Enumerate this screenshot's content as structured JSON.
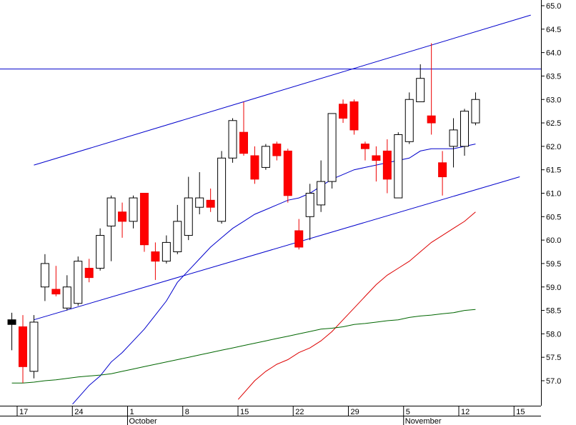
{
  "chart_data": {
    "type": "candlestick",
    "y_axis": {
      "position": "right",
      "range": [
        56.55,
        65.1
      ],
      "ticks": [
        "57.0",
        "57.5",
        "58.0",
        "58.5",
        "59.0",
        "59.5",
        "60.0",
        "60.5",
        "61.0",
        "61.5",
        "62.0",
        "62.5",
        "63.0",
        "63.5",
        "64.0",
        "64.5",
        "65.0"
      ]
    },
    "x_axis": {
      "day_labels": [
        {
          "label": "17",
          "index": 0
        },
        {
          "label": "24",
          "index": 5
        },
        {
          "label": "1",
          "index": 10
        },
        {
          "label": "8",
          "index": 15
        },
        {
          "label": "15",
          "index": 20
        },
        {
          "label": "22",
          "index": 25
        },
        {
          "label": "29",
          "index": 30
        },
        {
          "label": "5",
          "index": 35
        },
        {
          "label": "12",
          "index": 40
        },
        {
          "label": "15",
          "index": 45
        }
      ],
      "month_labels": [
        {
          "label": "October",
          "index": 10
        },
        {
          "label": "November",
          "index": 35
        }
      ]
    },
    "candles": [
      {
        "i": -1,
        "o": 58.3,
        "h": 58.45,
        "l": 57.65,
        "c": 58.2,
        "color": "black"
      },
      {
        "i": 0,
        "o": 58.15,
        "h": 58.4,
        "l": 56.95,
        "c": 57.3,
        "color": "red"
      },
      {
        "i": 1,
        "o": 57.2,
        "h": 58.4,
        "l": 57.05,
        "c": 58.25,
        "color": "white"
      },
      {
        "i": 2,
        "o": 59.0,
        "h": 59.7,
        "l": 58.7,
        "c": 59.5,
        "color": "white"
      },
      {
        "i": 3,
        "o": 58.95,
        "h": 59.45,
        "l": 58.8,
        "c": 58.85,
        "color": "red"
      },
      {
        "i": 4,
        "o": 58.55,
        "h": 59.25,
        "l": 58.5,
        "c": 59.0,
        "color": "white"
      },
      {
        "i": 5,
        "o": 58.65,
        "h": 59.65,
        "l": 58.6,
        "c": 59.55,
        "color": "white"
      },
      {
        "i": 6,
        "o": 59.4,
        "h": 59.6,
        "l": 59.1,
        "c": 59.2,
        "color": "red"
      },
      {
        "i": 7,
        "o": 59.4,
        "h": 60.25,
        "l": 59.35,
        "c": 60.1,
        "color": "white"
      },
      {
        "i": 8,
        "o": 60.3,
        "h": 60.95,
        "l": 59.55,
        "c": 60.9,
        "color": "white"
      },
      {
        "i": 9,
        "o": 60.6,
        "h": 60.8,
        "l": 60.05,
        "c": 60.4,
        "color": "red"
      },
      {
        "i": 10,
        "o": 60.4,
        "h": 60.95,
        "l": 60.25,
        "c": 60.9,
        "color": "white"
      },
      {
        "i": 11,
        "o": 61.0,
        "h": 61.0,
        "l": 59.75,
        "c": 59.9,
        "color": "red"
      },
      {
        "i": 12,
        "o": 59.75,
        "h": 59.95,
        "l": 59.15,
        "c": 59.55,
        "color": "red"
      },
      {
        "i": 13,
        "o": 59.55,
        "h": 60.1,
        "l": 59.5,
        "c": 59.95,
        "color": "white"
      },
      {
        "i": 14,
        "o": 59.75,
        "h": 60.75,
        "l": 59.7,
        "c": 60.4,
        "color": "white"
      },
      {
        "i": 15,
        "o": 60.1,
        "h": 61.35,
        "l": 60.0,
        "c": 60.9,
        "color": "white"
      },
      {
        "i": 16,
        "o": 60.7,
        "h": 61.45,
        "l": 60.55,
        "c": 60.9,
        "color": "white"
      },
      {
        "i": 17,
        "o": 60.85,
        "h": 61.1,
        "l": 60.6,
        "c": 60.7,
        "color": "red"
      },
      {
        "i": 18,
        "o": 60.4,
        "h": 61.9,
        "l": 60.35,
        "c": 61.75,
        "color": "white"
      },
      {
        "i": 19,
        "o": 61.75,
        "h": 62.6,
        "l": 61.65,
        "c": 62.55,
        "color": "white"
      },
      {
        "i": 20,
        "o": 62.3,
        "h": 62.95,
        "l": 61.8,
        "c": 61.85,
        "color": "red"
      },
      {
        "i": 21,
        "o": 61.8,
        "h": 62.0,
        "l": 61.2,
        "c": 61.3,
        "color": "red"
      },
      {
        "i": 22,
        "o": 61.55,
        "h": 62.05,
        "l": 61.5,
        "c": 62.0,
        "color": "white"
      },
      {
        "i": 23,
        "o": 62.05,
        "h": 62.1,
        "l": 61.7,
        "c": 61.8,
        "color": "red"
      },
      {
        "i": 24,
        "o": 61.9,
        "h": 61.95,
        "l": 60.8,
        "c": 60.95,
        "color": "red"
      },
      {
        "i": 25,
        "o": 60.2,
        "h": 60.45,
        "l": 59.8,
        "c": 59.85,
        "color": "red"
      },
      {
        "i": 26,
        "o": 60.5,
        "h": 61.2,
        "l": 60.0,
        "c": 61.0,
        "color": "white"
      },
      {
        "i": 27,
        "o": 60.75,
        "h": 61.7,
        "l": 60.6,
        "c": 61.25,
        "color": "white"
      },
      {
        "i": 28,
        "o": 61.25,
        "h": 62.7,
        "l": 61.1,
        "c": 62.7,
        "color": "white"
      },
      {
        "i": 29,
        "o": 62.9,
        "h": 63.0,
        "l": 62.5,
        "c": 62.6,
        "color": "red"
      },
      {
        "i": 30,
        "o": 62.95,
        "h": 63.0,
        "l": 62.25,
        "c": 62.35,
        "color": "red"
      },
      {
        "i": 31,
        "o": 62.05,
        "h": 62.1,
        "l": 61.7,
        "c": 61.95,
        "color": "red"
      },
      {
        "i": 32,
        "o": 61.8,
        "h": 62.0,
        "l": 61.25,
        "c": 61.7,
        "color": "red"
      },
      {
        "i": 33,
        "o": 61.9,
        "h": 62.15,
        "l": 61.0,
        "c": 61.3,
        "color": "red"
      },
      {
        "i": 34,
        "o": 60.9,
        "h": 62.3,
        "l": 60.9,
        "c": 62.25,
        "color": "white"
      },
      {
        "i": 35,
        "o": 62.1,
        "h": 63.15,
        "l": 62.05,
        "c": 63.0,
        "color": "white"
      },
      {
        "i": 36,
        "o": 62.95,
        "h": 63.75,
        "l": 62.95,
        "c": 63.45,
        "color": "white"
      },
      {
        "i": 37,
        "o": 62.65,
        "h": 64.2,
        "l": 62.25,
        "c": 62.5,
        "color": "red"
      },
      {
        "i": 38,
        "o": 61.65,
        "h": 61.9,
        "l": 60.95,
        "c": 61.35,
        "color": "red"
      },
      {
        "i": 39,
        "o": 62.0,
        "h": 62.6,
        "l": 61.55,
        "c": 62.35,
        "color": "white"
      },
      {
        "i": 40,
        "o": 62.0,
        "h": 62.8,
        "l": 61.8,
        "c": 62.75,
        "color": "white"
      },
      {
        "i": 41,
        "o": 62.5,
        "h": 63.15,
        "l": 62.45,
        "c": 63.0,
        "color": "white"
      }
    ],
    "series": [
      {
        "type": "line",
        "color": "#0000cc",
        "points": [
          [
            4.5,
            56.5
          ],
          [
            6,
            56.9
          ],
          [
            7,
            57.1
          ],
          [
            8,
            57.4
          ],
          [
            9,
            57.6
          ],
          [
            10,
            57.85
          ],
          [
            11,
            58.1
          ],
          [
            12,
            58.4
          ],
          [
            13,
            58.7
          ],
          [
            14,
            59.1
          ],
          [
            15,
            59.35
          ],
          [
            16,
            59.6
          ],
          [
            17,
            59.85
          ],
          [
            18,
            60.05
          ],
          [
            19,
            60.25
          ],
          [
            20,
            60.4
          ],
          [
            21,
            60.55
          ],
          [
            22,
            60.65
          ],
          [
            23,
            60.75
          ],
          [
            24,
            60.85
          ],
          [
            25,
            60.9
          ],
          [
            26,
            61.0
          ],
          [
            27,
            61.15
          ],
          [
            28,
            61.3
          ],
          [
            29,
            61.4
          ],
          [
            30,
            61.5
          ],
          [
            31,
            61.55
          ],
          [
            32,
            61.6
          ],
          [
            33,
            61.65
          ],
          [
            34,
            61.7
          ],
          [
            35,
            61.75
          ],
          [
            36,
            61.9
          ],
          [
            37,
            61.95
          ],
          [
            38,
            61.95
          ],
          [
            39,
            61.95
          ],
          [
            40,
            62.0
          ],
          [
            41,
            62.05
          ]
        ]
      },
      {
        "type": "line",
        "color": "#dd0000",
        "points": [
          [
            19.5,
            56.6
          ],
          [
            21,
            57.0
          ],
          [
            22,
            57.2
          ],
          [
            23,
            57.35
          ],
          [
            24,
            57.45
          ],
          [
            25,
            57.6
          ],
          [
            26,
            57.7
          ],
          [
            27,
            57.85
          ],
          [
            28,
            58.05
          ],
          [
            29,
            58.3
          ],
          [
            30,
            58.55
          ],
          [
            31,
            58.8
          ],
          [
            32,
            59.05
          ],
          [
            33,
            59.25
          ],
          [
            34,
            59.4
          ],
          [
            35,
            59.55
          ],
          [
            36,
            59.75
          ],
          [
            37,
            59.95
          ],
          [
            38,
            60.1
          ],
          [
            39,
            60.25
          ],
          [
            40,
            60.4
          ],
          [
            41,
            60.6
          ]
        ]
      },
      {
        "type": "line",
        "color": "#006600",
        "points": [
          [
            -1,
            56.95
          ],
          [
            0,
            56.95
          ],
          [
            1,
            56.97
          ],
          [
            2,
            57.0
          ],
          [
            3,
            57.02
          ],
          [
            4,
            57.05
          ],
          [
            5,
            57.08
          ],
          [
            6,
            57.1
          ],
          [
            7,
            57.12
          ],
          [
            8,
            57.15
          ],
          [
            9,
            57.2
          ],
          [
            10,
            57.25
          ],
          [
            11,
            57.3
          ],
          [
            12,
            57.35
          ],
          [
            13,
            57.4
          ],
          [
            14,
            57.45
          ],
          [
            15,
            57.5
          ],
          [
            16,
            57.55
          ],
          [
            17,
            57.6
          ],
          [
            18,
            57.65
          ],
          [
            19,
            57.7
          ],
          [
            20,
            57.75
          ],
          [
            21,
            57.8
          ],
          [
            22,
            57.85
          ],
          [
            23,
            57.9
          ],
          [
            24,
            57.95
          ],
          [
            25,
            58.0
          ],
          [
            26,
            58.05
          ],
          [
            27,
            58.1
          ],
          [
            28,
            58.12
          ],
          [
            29,
            58.15
          ],
          [
            30,
            58.2
          ],
          [
            31,
            58.22
          ],
          [
            32,
            58.25
          ],
          [
            33,
            58.28
          ],
          [
            34,
            58.3
          ],
          [
            35,
            58.35
          ],
          [
            36,
            58.38
          ],
          [
            37,
            58.4
          ],
          [
            38,
            58.43
          ],
          [
            39,
            58.45
          ],
          [
            40,
            58.5
          ],
          [
            41,
            58.52
          ]
        ]
      },
      {
        "type": "trendline",
        "color": "#0000cc",
        "points": [
          [
            1,
            61.6
          ],
          [
            46,
            64.8
          ]
        ]
      },
      {
        "type": "trendline",
        "color": "#0000cc",
        "points": [
          [
            1,
            58.3
          ],
          [
            45,
            61.35
          ]
        ]
      },
      {
        "type": "horizontal",
        "color": "#0000cc",
        "y": 63.65
      }
    ]
  }
}
